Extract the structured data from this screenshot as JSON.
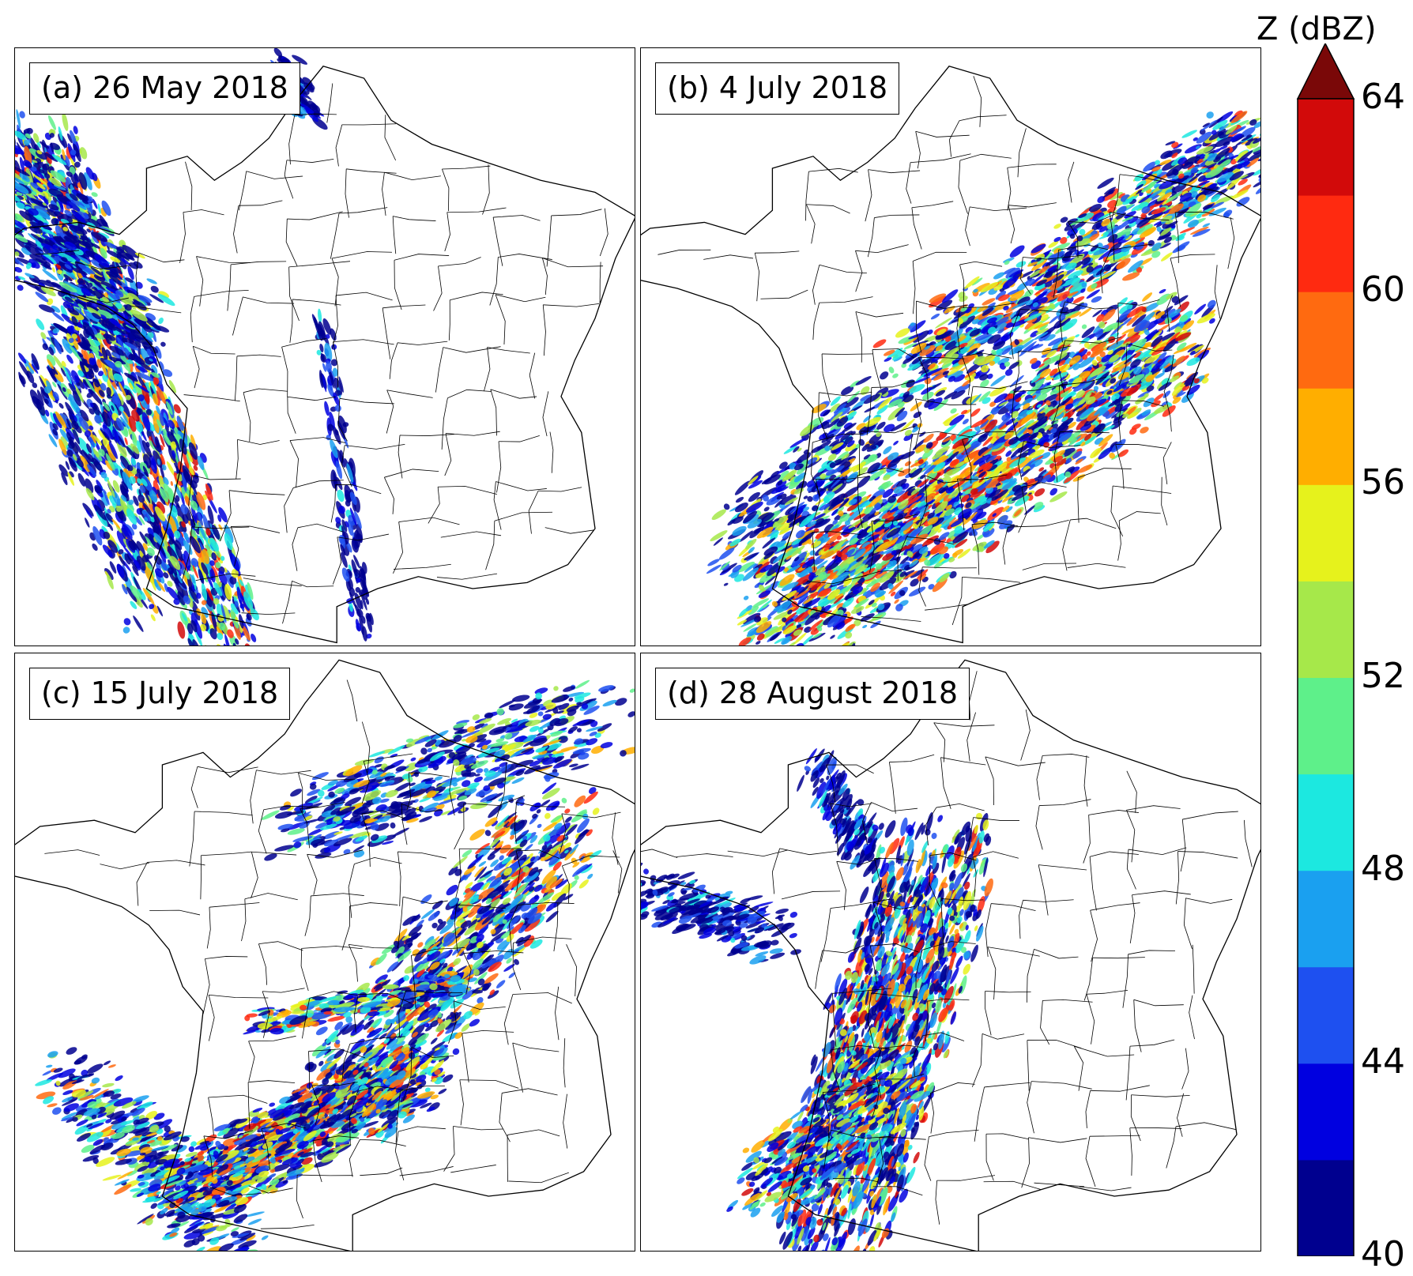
{
  "panels": [
    {
      "label": "(a) 26 May 2018",
      "pattern": "atlantic-coast-band"
    },
    {
      "label": "(b) 4 July 2018",
      "pattern": "southwest-to-northeast-squall"
    },
    {
      "label": "(c) 15 July 2018",
      "pattern": "scattered-southwest-cells"
    },
    {
      "label": "(d) 28 August 2018",
      "pattern": "central-west-band"
    }
  ],
  "colorbar": {
    "title": "Z (dBZ)",
    "ticks": [
      "64",
      "60",
      "56",
      "52",
      "48",
      "44",
      "40"
    ],
    "colors": [
      "#00008f",
      "#0000e0",
      "#1e50f0",
      "#1aa0f0",
      "#1ce8e0",
      "#5ef08a",
      "#a6e84a",
      "#e6f21c",
      "#ffae00",
      "#ff6a10",
      "#ff2a10",
      "#d20a0a",
      "#7a0808"
    ]
  },
  "map": {
    "region": "France",
    "boundaries": "departments"
  }
}
